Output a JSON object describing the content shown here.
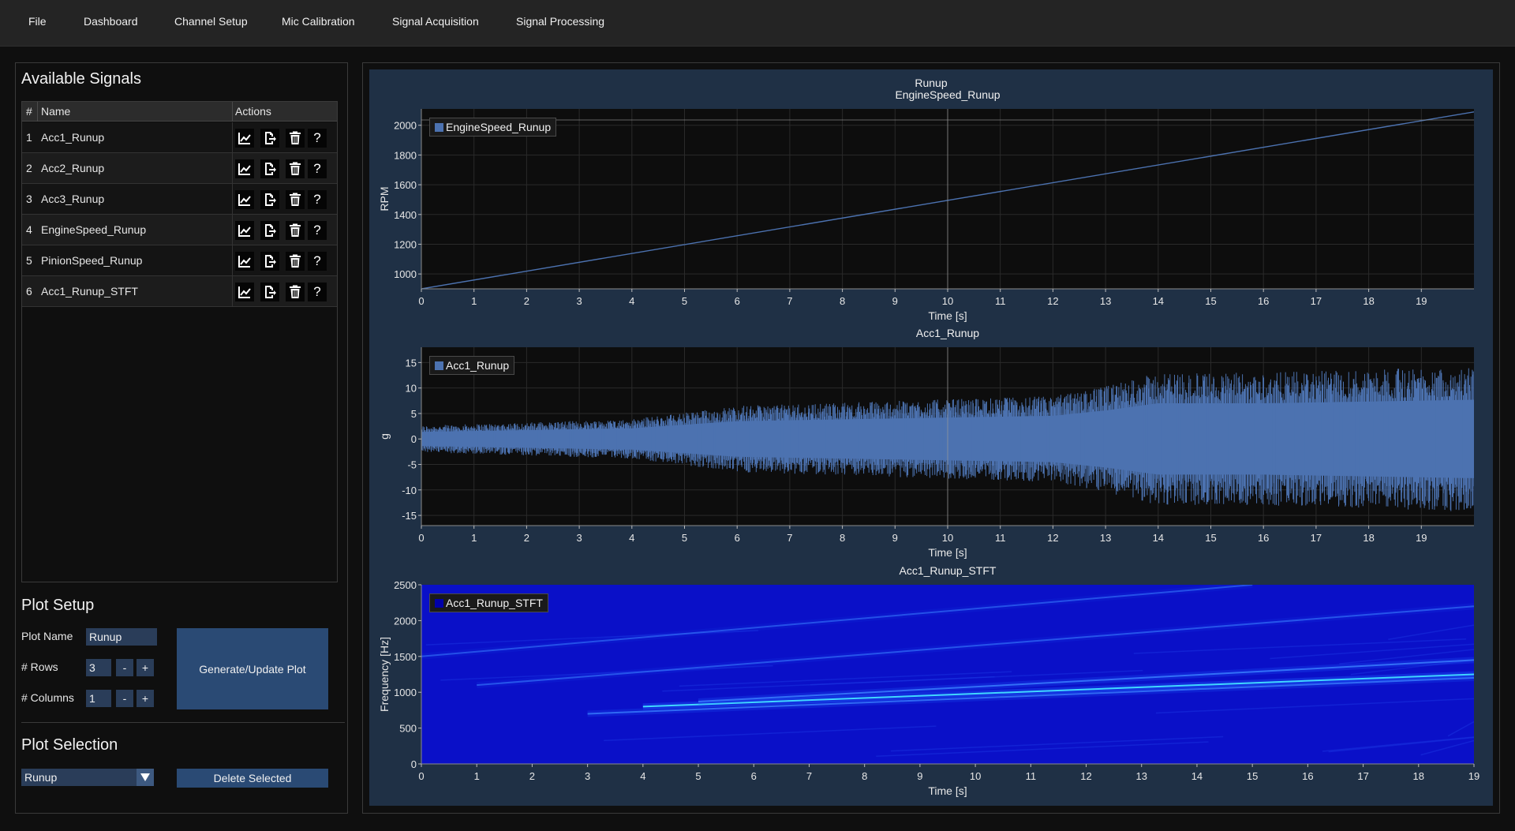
{
  "menu": [
    {
      "label": "File"
    },
    {
      "label": "Dashboard"
    },
    {
      "label": "Channel Setup"
    },
    {
      "label": "Mic Calibration"
    },
    {
      "label": "Signal Acquisition"
    },
    {
      "label": "Signal Processing"
    }
  ],
  "signals": {
    "title": "Available Signals",
    "columns": {
      "num": "#",
      "name": "Name",
      "actions": "Actions"
    },
    "rows": [
      {
        "num": "1",
        "name": "Acc1_Runup"
      },
      {
        "num": "2",
        "name": "Acc2_Runup"
      },
      {
        "num": "3",
        "name": "Acc3_Runup"
      },
      {
        "num": "4",
        "name": "EngineSpeed_Runup"
      },
      {
        "num": "5",
        "name": "PinionSpeed_Runup"
      },
      {
        "num": "6",
        "name": "Acc1_Runup_STFT"
      }
    ],
    "action_icons": [
      "chart-line-icon",
      "file-export-icon",
      "trash-icon",
      "help-icon"
    ],
    "help_glyph": "?"
  },
  "plot_setup": {
    "title": "Plot Setup",
    "plot_name_label": "Plot Name",
    "plot_name_value": "Runup",
    "rows_label": "# Rows",
    "rows_value": "3",
    "columns_label": "# Columns",
    "columns_value": "1",
    "minus": "-",
    "plus": "+",
    "generate_label": "Generate/Update Plot"
  },
  "plot_selection": {
    "title": "Plot Selection",
    "selected": "Runup",
    "delete_label": "Delete Selected"
  },
  "colors": {
    "accent": "#2a4a74",
    "line": "#4c72b0",
    "spectro_base": "#0a10c8"
  },
  "chart_data": {
    "title": "Runup",
    "subplots": [
      {
        "type": "line",
        "title": "EngineSpeed_Runup",
        "legend": "EngineSpeed_Runup",
        "xlabel": "Time [s]",
        "ylabel": "RPM",
        "xlim": [
          0,
          20
        ],
        "ylim": [
          900,
          2110
        ],
        "xticks": [
          0,
          1,
          2,
          3,
          4,
          5,
          6,
          7,
          8,
          9,
          10,
          11,
          12,
          13,
          14,
          15,
          16,
          17,
          18,
          19
        ],
        "yticks": [
          1000,
          1200,
          1400,
          1600,
          1800,
          2000
        ],
        "series": [
          {
            "x": [
              0,
              20
            ],
            "y": [
              900,
              2090
            ]
          }
        ]
      },
      {
        "type": "line",
        "title": "Acc1_Runup",
        "legend": "Acc1_Runup",
        "xlabel": "Time [s]",
        "ylabel": "g",
        "xlim": [
          0,
          20
        ],
        "ylim": [
          -17,
          18
        ],
        "xticks": [
          0,
          1,
          2,
          3,
          4,
          5,
          6,
          7,
          8,
          9,
          10,
          11,
          12,
          13,
          14,
          15,
          16,
          17,
          18,
          19
        ],
        "yticks": [
          -15,
          -10,
          -5,
          0,
          5,
          10,
          15
        ],
        "envelope": {
          "x": [
            0,
            2,
            4,
            5,
            6,
            8,
            10,
            12,
            13,
            14,
            16,
            18,
            20
          ],
          "amplitude": [
            2,
            2.5,
            3,
            4,
            5,
            5.5,
            6,
            6.5,
            8,
            10,
            10,
            10.5,
            11
          ]
        }
      },
      {
        "type": "heatmap",
        "title": "Acc1_Runup_STFT",
        "legend": "Acc1_Runup_STFT",
        "xlabel": "Time [s]",
        "ylabel": "Frequency [Hz]",
        "xlim": [
          0,
          19
        ],
        "ylim": [
          0,
          2500
        ],
        "xticks": [
          0,
          1,
          2,
          3,
          4,
          5,
          6,
          7,
          8,
          9,
          10,
          11,
          12,
          13,
          14,
          15,
          16,
          17,
          18,
          19
        ],
        "yticks": [
          0,
          500,
          1000,
          1500,
          2000,
          2500
        ],
        "orders": [
          {
            "x": [
              4,
              19
            ],
            "y": [
              800,
              1250
            ],
            "intensity": 1.0
          },
          {
            "x": [
              3,
              19
            ],
            "y": [
              700,
              1200
            ],
            "intensity": 0.6
          },
          {
            "x": [
              5,
              19
            ],
            "y": [
              870,
              1450
            ],
            "intensity": 0.7
          },
          {
            "x": [
              1,
              19
            ],
            "y": [
              1100,
              2200
            ],
            "intensity": 0.3
          },
          {
            "x": [
              0,
              15
            ],
            "y": [
              1500,
              2500
            ],
            "intensity": 0.25
          }
        ]
      }
    ]
  }
}
